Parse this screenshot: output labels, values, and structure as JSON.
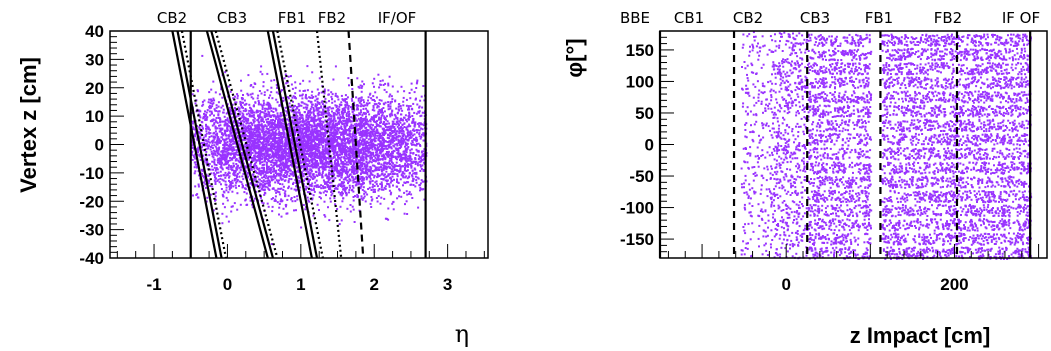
{
  "chart_data": [
    {
      "type": "scatter",
      "title": "",
      "xlabel": "η",
      "ylabel": "Vertex z [cm]",
      "xlim": [
        -1.6,
        3.55
      ],
      "ylim": [
        -40,
        40
      ],
      "x_ticks": [
        "-1",
        "0",
        "1",
        "2",
        "3"
      ],
      "y_ticks": [
        "40",
        "30",
        "20",
        "10",
        "0",
        "-10",
        "-20",
        "-30",
        "-40"
      ],
      "point_color": "#9933ff",
      "region_labels": [
        "CB2",
        "CB3",
        "FB1",
        "FB2",
        "IF/OF"
      ],
      "point_cloud": {
        "eta_center": 1.15,
        "eta_spread": 1.1,
        "z_center": 0,
        "z_sigma": 9,
        "eta_min": -0.5,
        "eta_max": 2.7
      },
      "boundary_lines": [
        {
          "style": "solid",
          "x_at_zmax": -0.5,
          "x_at_zmin": -0.5
        },
        {
          "style": "solid",
          "x_at_zmax": 2.7,
          "x_at_zmin": 2.7
        },
        {
          "style": "solid",
          "x_at_zmax": -0.28,
          "x_at_zmin": 0.55
        },
        {
          "style": "solid",
          "x_at_zmax": -0.22,
          "x_at_zmin": 0.62
        },
        {
          "style": "dotted",
          "x_at_zmax": -0.16,
          "x_at_zmin": 0.68
        },
        {
          "style": "solid",
          "x_at_zmax": 0.55,
          "x_at_zmin": 1.15
        },
        {
          "style": "solid",
          "x_at_zmax": 0.62,
          "x_at_zmin": 1.22
        },
        {
          "style": "dotted",
          "x_at_zmax": 0.68,
          "x_at_zmin": 1.3
        },
        {
          "style": "dotted",
          "x_at_zmax": 1.22,
          "x_at_zmin": 1.55
        },
        {
          "style": "dashed",
          "x_at_zmax": 1.65,
          "x_at_zmin": 1.85
        },
        {
          "style": "solid",
          "x_at_zmax": -0.75,
          "x_at_zmin": -0.15
        },
        {
          "style": "solid",
          "x_at_zmax": -0.68,
          "x_at_zmin": -0.08
        },
        {
          "style": "dotted",
          "x_at_zmax": -0.62,
          "x_at_zmin": -0.02
        }
      ]
    },
    {
      "type": "scatter",
      "title": "",
      "xlabel": "z Impact [cm]",
      "ylabel": "φ[°]",
      "xlim": [
        -150,
        310
      ],
      "ylim": [
        -180,
        180
      ],
      "x_ticks": [
        "0",
        "200"
      ],
      "y_ticks": [
        "150",
        "100",
        "50",
        "0",
        "-50",
        "-100",
        "-150"
      ],
      "point_color": "#9933ff",
      "region_labels": [
        "BBE",
        "CB1",
        "CB2",
        "CB3",
        "FB1",
        "FB2",
        "IF OF"
      ],
      "point_cloud": {
        "z_min": -55,
        "z_max": 290,
        "bands": 16
      },
      "boundary_lines": [
        {
          "style": "solid",
          "x": -150
        },
        {
          "style": "dashed",
          "x": -62
        },
        {
          "style": "dashed",
          "x": 25
        },
        {
          "style": "dashed",
          "x": 112
        },
        {
          "style": "dashed",
          "x": 203
        },
        {
          "style": "solid",
          "x": 290
        }
      ]
    }
  ]
}
